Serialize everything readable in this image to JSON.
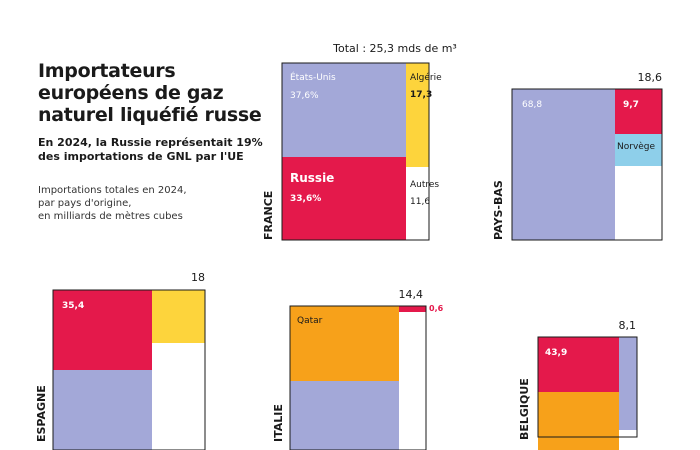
{
  "header": {
    "title": "Importateurs européens de gaz naturel liquéfié russe",
    "subtitle": "En 2024, la Russie représentait 19% des importations de GNL par l'UE",
    "note_lines": [
      "Importations totales en 2024,",
      "par pays d'origine,",
      "en milliards de mètres cubes"
    ]
  },
  "colors": {
    "etats_unis": "#a3a8d8",
    "algerie": "#fdd43c",
    "russie": "#e4194b",
    "norvege": "#8ecfea",
    "qatar": "#f7a11a",
    "autres": "#ffffff",
    "text_on_light": "#ffffff",
    "russia_label": "#e4194b"
  },
  "chart_data": [
    {
      "type": "treemap",
      "country": "FRANCE",
      "total_label": "Total : 25,3 mds de m³",
      "total": 25.3,
      "segments": [
        {
          "name": "États-Unis",
          "value_label": "37,6%",
          "share": 37.6,
          "color_key": "etats_unis"
        },
        {
          "name": "Algérie",
          "value_label": "17,3",
          "share": 17.3,
          "color_key": "algerie"
        },
        {
          "name": "Russie",
          "value_label": "33,6%",
          "share": 33.6,
          "color_key": "russie"
        },
        {
          "name": "Autres",
          "value_label": "11,6",
          "share": 11.6,
          "color_key": "autres"
        }
      ]
    },
    {
      "type": "treemap",
      "country": "PAYS-BAS",
      "total_label": "18,6",
      "total": 18.6,
      "segments": [
        {
          "name": "",
          "value_label": "68,8",
          "share": 68.8,
          "color_key": "etats_unis"
        },
        {
          "name": "",
          "value_label": "9,7",
          "share": 9.7,
          "color_key": "russie"
        },
        {
          "name": "Norvège",
          "value_label": "",
          "share": null,
          "color_key": "norvege"
        },
        {
          "name": "",
          "value_label": "",
          "share": null,
          "color_key": "autres"
        }
      ]
    },
    {
      "type": "treemap",
      "country": "ESPAGNE",
      "total_label": "18",
      "total": 18,
      "segments": [
        {
          "name": "",
          "value_label": "35,4",
          "share": 35.4,
          "color_key": "russie"
        },
        {
          "name": "",
          "value_label": "",
          "share": null,
          "color_key": "algerie"
        },
        {
          "name": "",
          "value_label": "",
          "share": null,
          "color_key": "etats_unis"
        },
        {
          "name": "",
          "value_label": "",
          "share": null,
          "color_key": "autres"
        }
      ]
    },
    {
      "type": "treemap",
      "country": "ITALIE",
      "total_label": "14,4",
      "total": 14.4,
      "segments": [
        {
          "name": "Qatar",
          "value_label": "",
          "share": null,
          "color_key": "qatar"
        },
        {
          "name": "",
          "value_label": "0,6",
          "share": 0.6,
          "color_key": "russie"
        },
        {
          "name": "",
          "value_label": "",
          "share": null,
          "color_key": "etats_unis"
        },
        {
          "name": "",
          "value_label": "",
          "share": null,
          "color_key": "autres"
        }
      ]
    },
    {
      "type": "treemap",
      "country": "BELGIQUE",
      "total_label": "8,1",
      "total": 8.1,
      "segments": [
        {
          "name": "",
          "value_label": "43,9",
          "share": 43.9,
          "color_key": "russie"
        },
        {
          "name": "",
          "value_label": "",
          "share": null,
          "color_key": "qatar"
        },
        {
          "name": "",
          "value_label": "",
          "share": null,
          "color_key": "etats_unis"
        },
        {
          "name": "",
          "value_label": "",
          "share": null,
          "color_key": "autres"
        }
      ]
    }
  ]
}
